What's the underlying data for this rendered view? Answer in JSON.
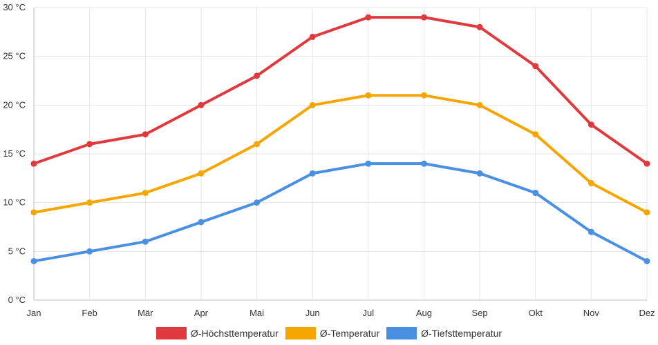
{
  "chart_data": {
    "type": "line",
    "categories": [
      "Jan",
      "Feb",
      "Mär",
      "Apr",
      "Mai",
      "Jun",
      "Jul",
      "Aug",
      "Sep",
      "Okt",
      "Nov",
      "Dez"
    ],
    "series": [
      {
        "name": "Ø-Höchsttemperatur",
        "color": "#e0393e",
        "values": [
          14,
          16,
          17,
          20,
          23,
          27,
          29,
          29,
          28,
          24,
          18,
          14
        ]
      },
      {
        "name": "Ø-Temperatur",
        "color": "#f7a600",
        "values": [
          9,
          10,
          11,
          13,
          16,
          20,
          21,
          21,
          20,
          17,
          12,
          9
        ]
      },
      {
        "name": "Ø-Tiefsttemperatur",
        "color": "#4a90e2",
        "values": [
          4,
          5,
          6,
          8,
          10,
          13,
          14,
          14,
          13,
          11,
          7,
          4
        ]
      }
    ],
    "yticks": [
      "0 °C",
      "5 °C",
      "10 °C",
      "15 °C",
      "20 °C",
      "25 °C",
      "30 °C"
    ],
    "ylim": [
      0,
      30
    ],
    "ystep": 5,
    "grid": true,
    "legend_position": "bottom"
  }
}
